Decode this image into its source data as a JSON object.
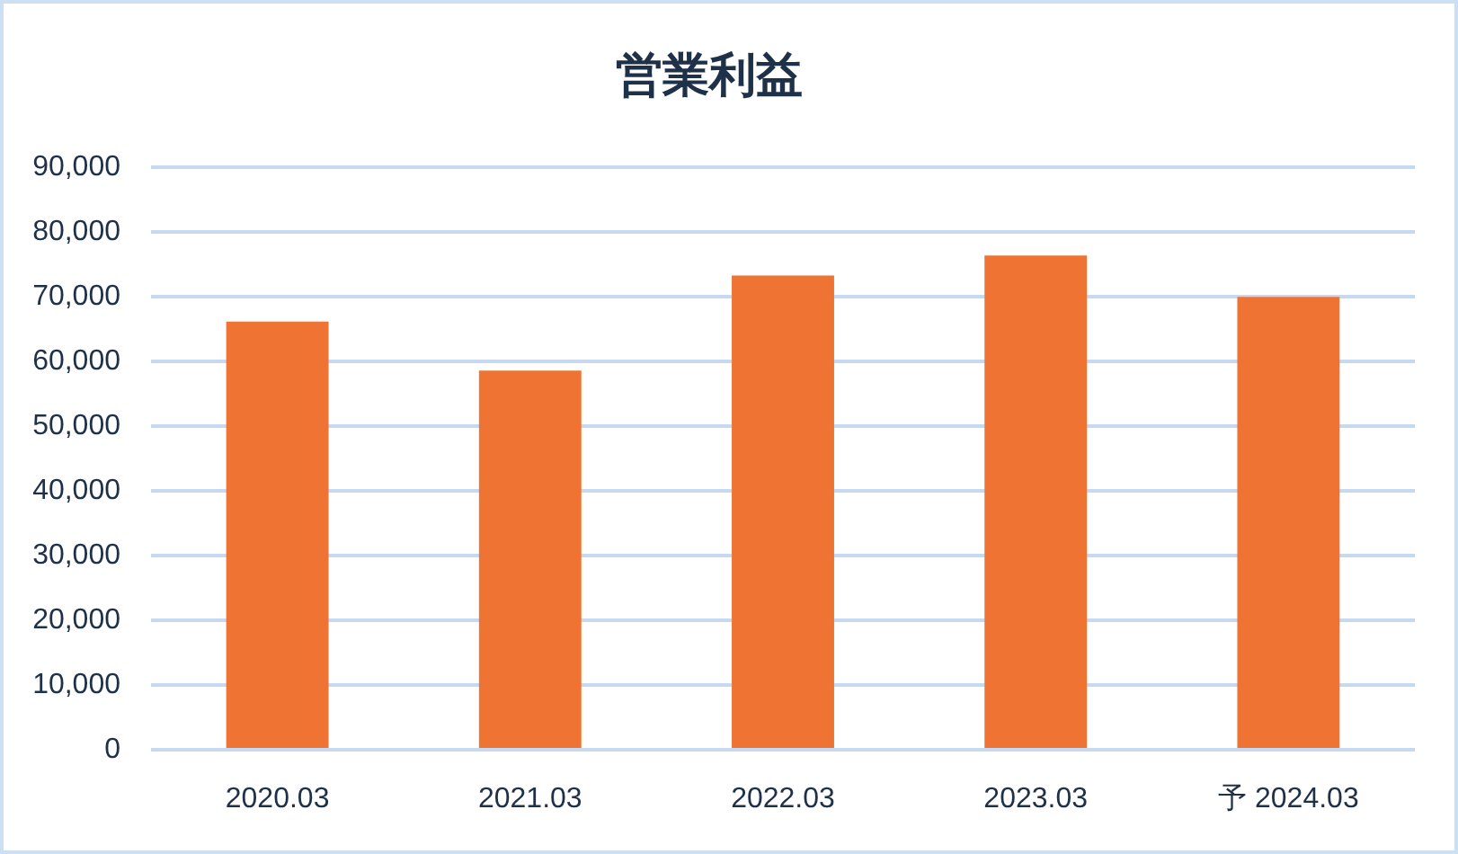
{
  "chart_data": {
    "type": "bar",
    "title": "営業利益",
    "categories": [
      "2020.03",
      "2021.03",
      "2022.03",
      "2023.03",
      "予 2024.03"
    ],
    "values": [
      66200,
      58600,
      73300,
      76400,
      70000
    ],
    "color": "#ef7433",
    "ylim": [
      0,
      90000
    ],
    "yticks": [
      0,
      {
        "value": 10000,
        "label": "10,000"
      },
      {
        "value": 20000,
        "label": "20,000"
      },
      {
        "value": 30000,
        "label": "30,000"
      },
      {
        "value": 40000,
        "label": "40,000"
      },
      {
        "value": 50000,
        "label": "50,000"
      },
      {
        "value": 60000,
        "label": "60,000"
      },
      {
        "value": 70000,
        "label": "70,000"
      },
      {
        "value": 80000,
        "label": "80,000"
      },
      {
        "value": 90000,
        "label": "90,000"
      }
    ],
    "grid": "y"
  }
}
